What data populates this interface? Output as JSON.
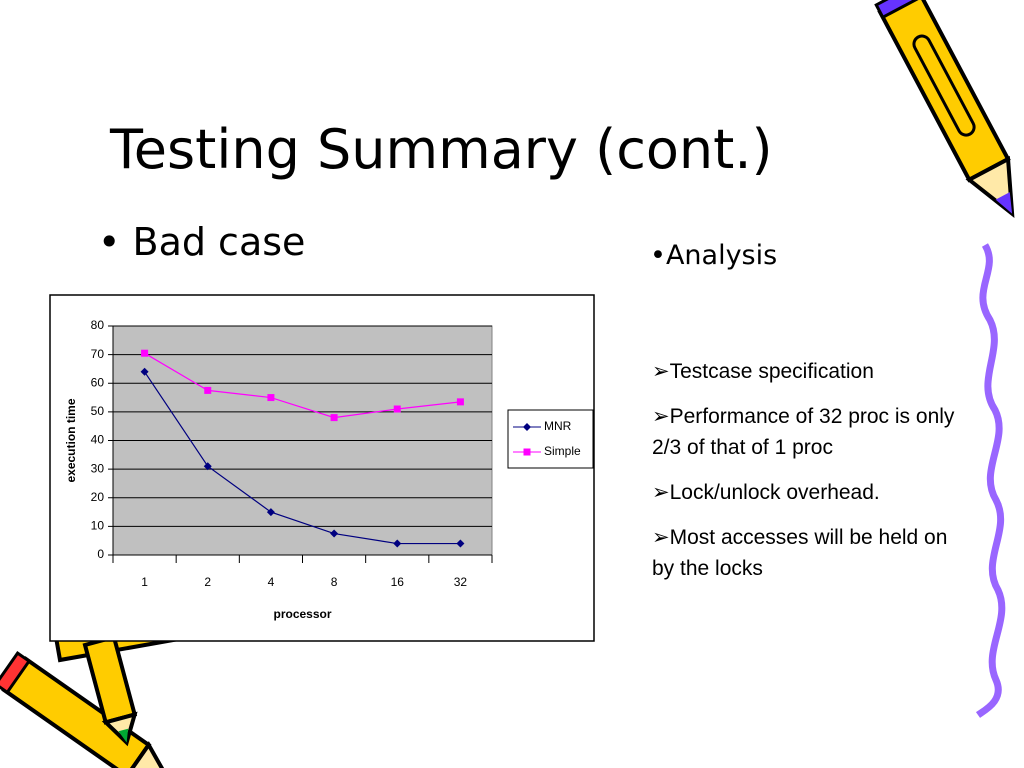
{
  "title": "Testing Summary (cont.)",
  "left_bullet": "Bad case",
  "right_heading": "Analysis",
  "right_points": [
    "Testcase specification",
    "Performance of 32 proc is only 2/3 of that of 1 proc",
    "Lock/unlock overhead.",
    "Most accesses will be held on by the locks"
  ],
  "chart_data": {
    "type": "line",
    "categories": [
      "1",
      "2",
      "4",
      "8",
      "16",
      "32"
    ],
    "series": [
      {
        "name": "MNR",
        "color": "#000080",
        "values": [
          64,
          31,
          15,
          7.5,
          4,
          4
        ]
      },
      {
        "name": "Simple",
        "color": "#ff00ff",
        "values": [
          70.5,
          57.5,
          55,
          48,
          51,
          53.5
        ]
      }
    ],
    "xlabel": "processor",
    "ylabel": "execution time",
    "ylim": [
      0,
      80
    ],
    "yticks": [
      0,
      10,
      20,
      30,
      40,
      50,
      60,
      70,
      80
    ],
    "grid": true,
    "legend": "right",
    "plot_background": "#c0c0c0"
  }
}
